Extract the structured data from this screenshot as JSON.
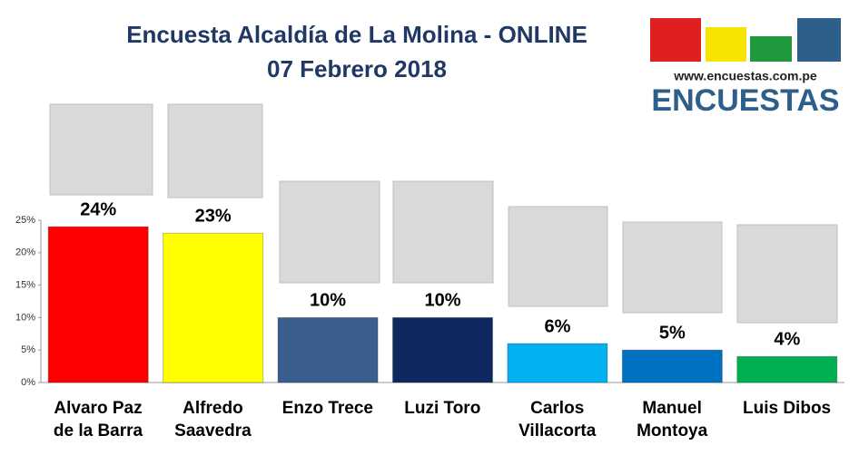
{
  "chart_data": {
    "type": "bar",
    "title": "Encuesta Alcaldía de La Molina - ONLINE",
    "subtitle": "07 Febrero 2018",
    "logo_url": "www.encuestas.com.pe",
    "logo_text": "ENCUESTAS",
    "categories": [
      "Alvaro Paz\nde la Barra",
      "Alfredo\nSaavedra",
      "Enzo Trece",
      "Luzi Toro",
      "Carlos\nVillacorta",
      "Manuel\nMontoya",
      "Luis Dibos"
    ],
    "values": [
      24,
      23,
      10,
      10,
      6,
      5,
      4
    ],
    "value_labels": [
      "24%",
      "23%",
      "10%",
      "10%",
      "6%",
      "5%",
      "4%"
    ],
    "colors": [
      "#ff0000",
      "#ffff00",
      "#3a5f8f",
      "#0f2860",
      "#00b0f0",
      "#0070c0",
      "#00b050"
    ],
    "ylim": [
      0,
      25
    ],
    "yticks": [
      {
        "value": 0,
        "label": "0%"
      },
      {
        "value": 5,
        "label": "5%"
      },
      {
        "value": 10,
        "label": "10%"
      },
      {
        "value": 15,
        "label": "15%"
      },
      {
        "value": 20,
        "label": "20%"
      },
      {
        "value": 25,
        "label": "25%"
      }
    ],
    "grid": false
  }
}
